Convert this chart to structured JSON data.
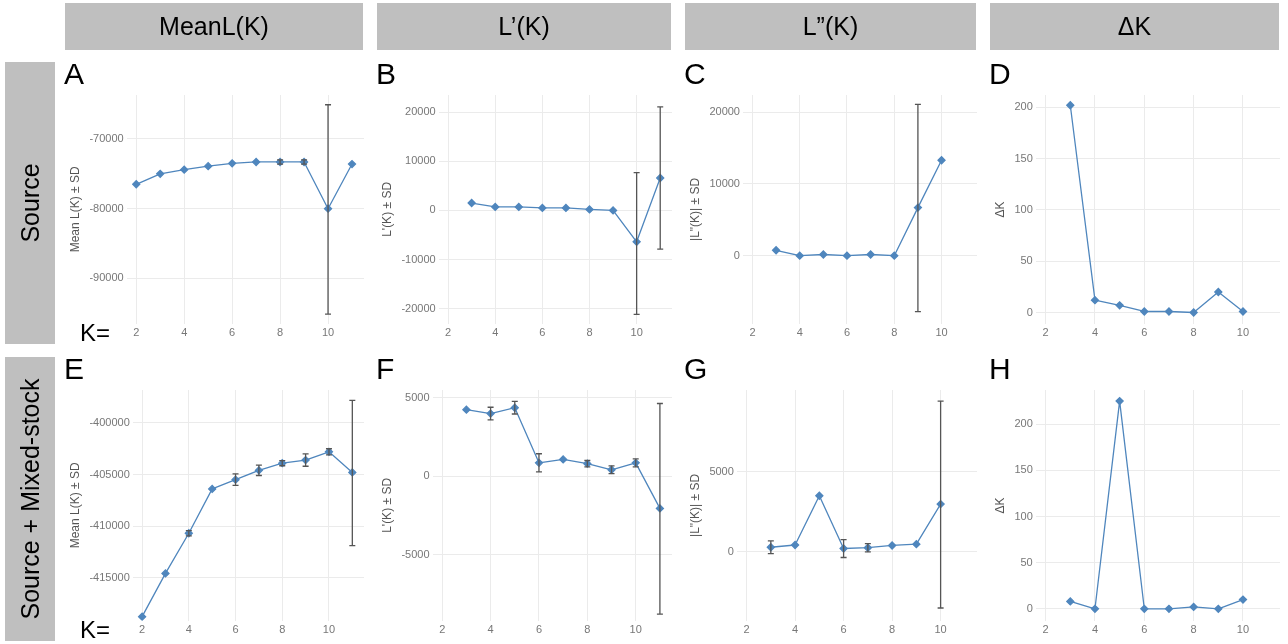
{
  "chart_data": [
    {
      "type": "line",
      "title": "A",
      "subtitle": "MeanL(K)",
      "annotations": [
        "Source",
        "K="
      ],
      "ylabel": "Mean L(K) ± SD",
      "x": [
        2,
        3,
        4,
        5,
        6,
        7,
        8,
        9,
        10,
        11
      ],
      "values": [
        -76500,
        -75000,
        -74400,
        -73900,
        -73500,
        -73300,
        -73300,
        -73300,
        -80000,
        -73600
      ],
      "errors": [
        null,
        null,
        null,
        null,
        null,
        null,
        300,
        300,
        [
          -95100,
          -65100
        ],
        null
      ],
      "color": "#4f86bd",
      "xlim": [
        1.6,
        11.5
      ],
      "xticks": [
        2,
        4,
        6,
        8,
        10
      ],
      "ylim": [
        -96500,
        -63700
      ],
      "yticks": [
        -90000,
        -80000,
        -70000
      ],
      "grid": true,
      "legend": false,
      "marker": "diamond",
      "line_style": "solid"
    },
    {
      "type": "line",
      "title": "B",
      "subtitle": "L’(K)",
      "ylabel": "L'(K) ± SD",
      "x": [
        3,
        4,
        5,
        6,
        7,
        8,
        9,
        10,
        11
      ],
      "values": [
        1500,
        700,
        700,
        500,
        500,
        200,
        0,
        -6400,
        6600
      ],
      "errors": [
        null,
        null,
        null,
        null,
        null,
        null,
        null,
        [
          -21200,
          7700
        ],
        [
          -7900,
          21100
        ]
      ],
      "color": "#4f86bd",
      "xlim": [
        1.6,
        11.5
      ],
      "xticks": [
        2,
        4,
        6,
        8,
        10
      ],
      "ylim": [
        -23100,
        23500
      ],
      "yticks": [
        -20000,
        -10000,
        0,
        10000,
        20000
      ],
      "grid": true,
      "legend": false,
      "marker": "diamond",
      "line_style": "solid"
    },
    {
      "type": "line",
      "title": "C",
      "subtitle": "L”(K)",
      "ylabel": "|L\"(K)| ± SD",
      "x": [
        3,
        4,
        5,
        6,
        7,
        8,
        9,
        10
      ],
      "values": [
        750,
        0,
        160,
        0,
        160,
        0,
        6700,
        13300
      ],
      "errors": [
        null,
        null,
        null,
        null,
        null,
        null,
        [
          -7800,
          21100
        ],
        null
      ],
      "color": "#4f86bd",
      "xlim": [
        1.6,
        11.5
      ],
      "xticks": [
        2,
        4,
        6,
        8,
        10
      ],
      "ylim": [
        -9500,
        22400
      ],
      "yticks": [
        0,
        10000,
        20000
      ],
      "grid": true,
      "legend": false,
      "marker": "diamond",
      "line_style": "solid"
    },
    {
      "type": "line",
      "title": "D",
      "subtitle": "ΔK",
      "ylabel": "ΔK",
      "x": [
        3,
        4,
        5,
        6,
        7,
        8,
        9,
        10
      ],
      "values": [
        202,
        12,
        7,
        1,
        1,
        0,
        20,
        1
      ],
      "color": "#4f86bd",
      "xlim": [
        1.6,
        11.5
      ],
      "xticks": [
        2,
        4,
        6,
        8,
        10
      ],
      "ylim": [
        -11,
        212
      ],
      "yticks": [
        0,
        50,
        100,
        150,
        200
      ],
      "grid": true,
      "legend": false,
      "marker": "diamond",
      "line_style": "solid"
    },
    {
      "type": "line",
      "title": "E",
      "annotations": [
        "Source + Mixed-stock",
        "K="
      ],
      "ylabel": "Mean L(K) ± SD",
      "x": [
        2,
        3,
        4,
        5,
        6,
        7,
        8,
        9,
        10,
        11
      ],
      "values": [
        -418800,
        -414600,
        -410700,
        -406400,
        -405500,
        -404600,
        -403900,
        -403600,
        -402800,
        -404800
      ],
      "errors": [
        null,
        null,
        250,
        null,
        550,
        500,
        250,
        600,
        300,
        [
          -411900,
          -397800
        ]
      ],
      "color": "#4f86bd",
      "xlim": [
        1.6,
        11.5
      ],
      "xticks": [
        2,
        4,
        6,
        8,
        10
      ],
      "ylim": [
        -419200,
        -396800
      ],
      "yticks": [
        -415000,
        -410000,
        -405000,
        -400000
      ],
      "grid": true,
      "legend": false,
      "marker": "diamond",
      "line_style": "solid"
    },
    {
      "type": "line",
      "title": "F",
      "ylabel": "L'(K) ± SD",
      "x": [
        3,
        4,
        5,
        6,
        7,
        8,
        9,
        10,
        11
      ],
      "values": [
        4250,
        4000,
        4370,
        860,
        1080,
        810,
        420,
        860,
        -2040
      ],
      "errors": [
        null,
        400,
        400,
        580,
        null,
        200,
        250,
        250,
        [
          -8770,
          4640
        ]
      ],
      "color": "#4f86bd",
      "xlim": [
        1.6,
        11.5
      ],
      "xticks": [
        2,
        4,
        6,
        8,
        10
      ],
      "ylim": [
        -9200,
        5500
      ],
      "yticks": [
        -5000,
        0,
        5000
      ],
      "grid": true,
      "legend": false,
      "marker": "diamond",
      "line_style": "solid"
    },
    {
      "type": "line",
      "title": "G",
      "ylabel": "|L\"(K)| ± SD",
      "x": [
        3,
        4,
        5,
        6,
        7,
        8,
        9,
        10
      ],
      "values": [
        290,
        430,
        3500,
        210,
        260,
        400,
        480,
        2980
      ],
      "errors": [
        400,
        null,
        null,
        560,
        260,
        null,
        null,
        [
          -3500,
          9400
        ]
      ],
      "color": "#4f86bd",
      "xlim": [
        1.6,
        11.5
      ],
      "xticks": [
        2,
        4,
        6,
        8,
        10
      ],
      "ylim": [
        -4300,
        10100
      ],
      "yticks": [
        0,
        5000
      ],
      "grid": true,
      "legend": false,
      "marker": "diamond",
      "line_style": "solid"
    },
    {
      "type": "line",
      "title": "H",
      "ylabel": "ΔK",
      "x": [
        3,
        4,
        5,
        6,
        7,
        8,
        9,
        10
      ],
      "values": [
        8,
        0,
        225,
        0,
        0,
        2,
        0,
        10
      ],
      "color": "#4f86bd",
      "xlim": [
        1.6,
        11.5
      ],
      "xticks": [
        2,
        4,
        6,
        8,
        10
      ],
      "ylim": [
        -13,
        237
      ],
      "yticks": [
        0,
        50,
        100,
        150,
        200
      ],
      "grid": true,
      "legend": false,
      "marker": "diamond",
      "line_style": "solid"
    }
  ]
}
